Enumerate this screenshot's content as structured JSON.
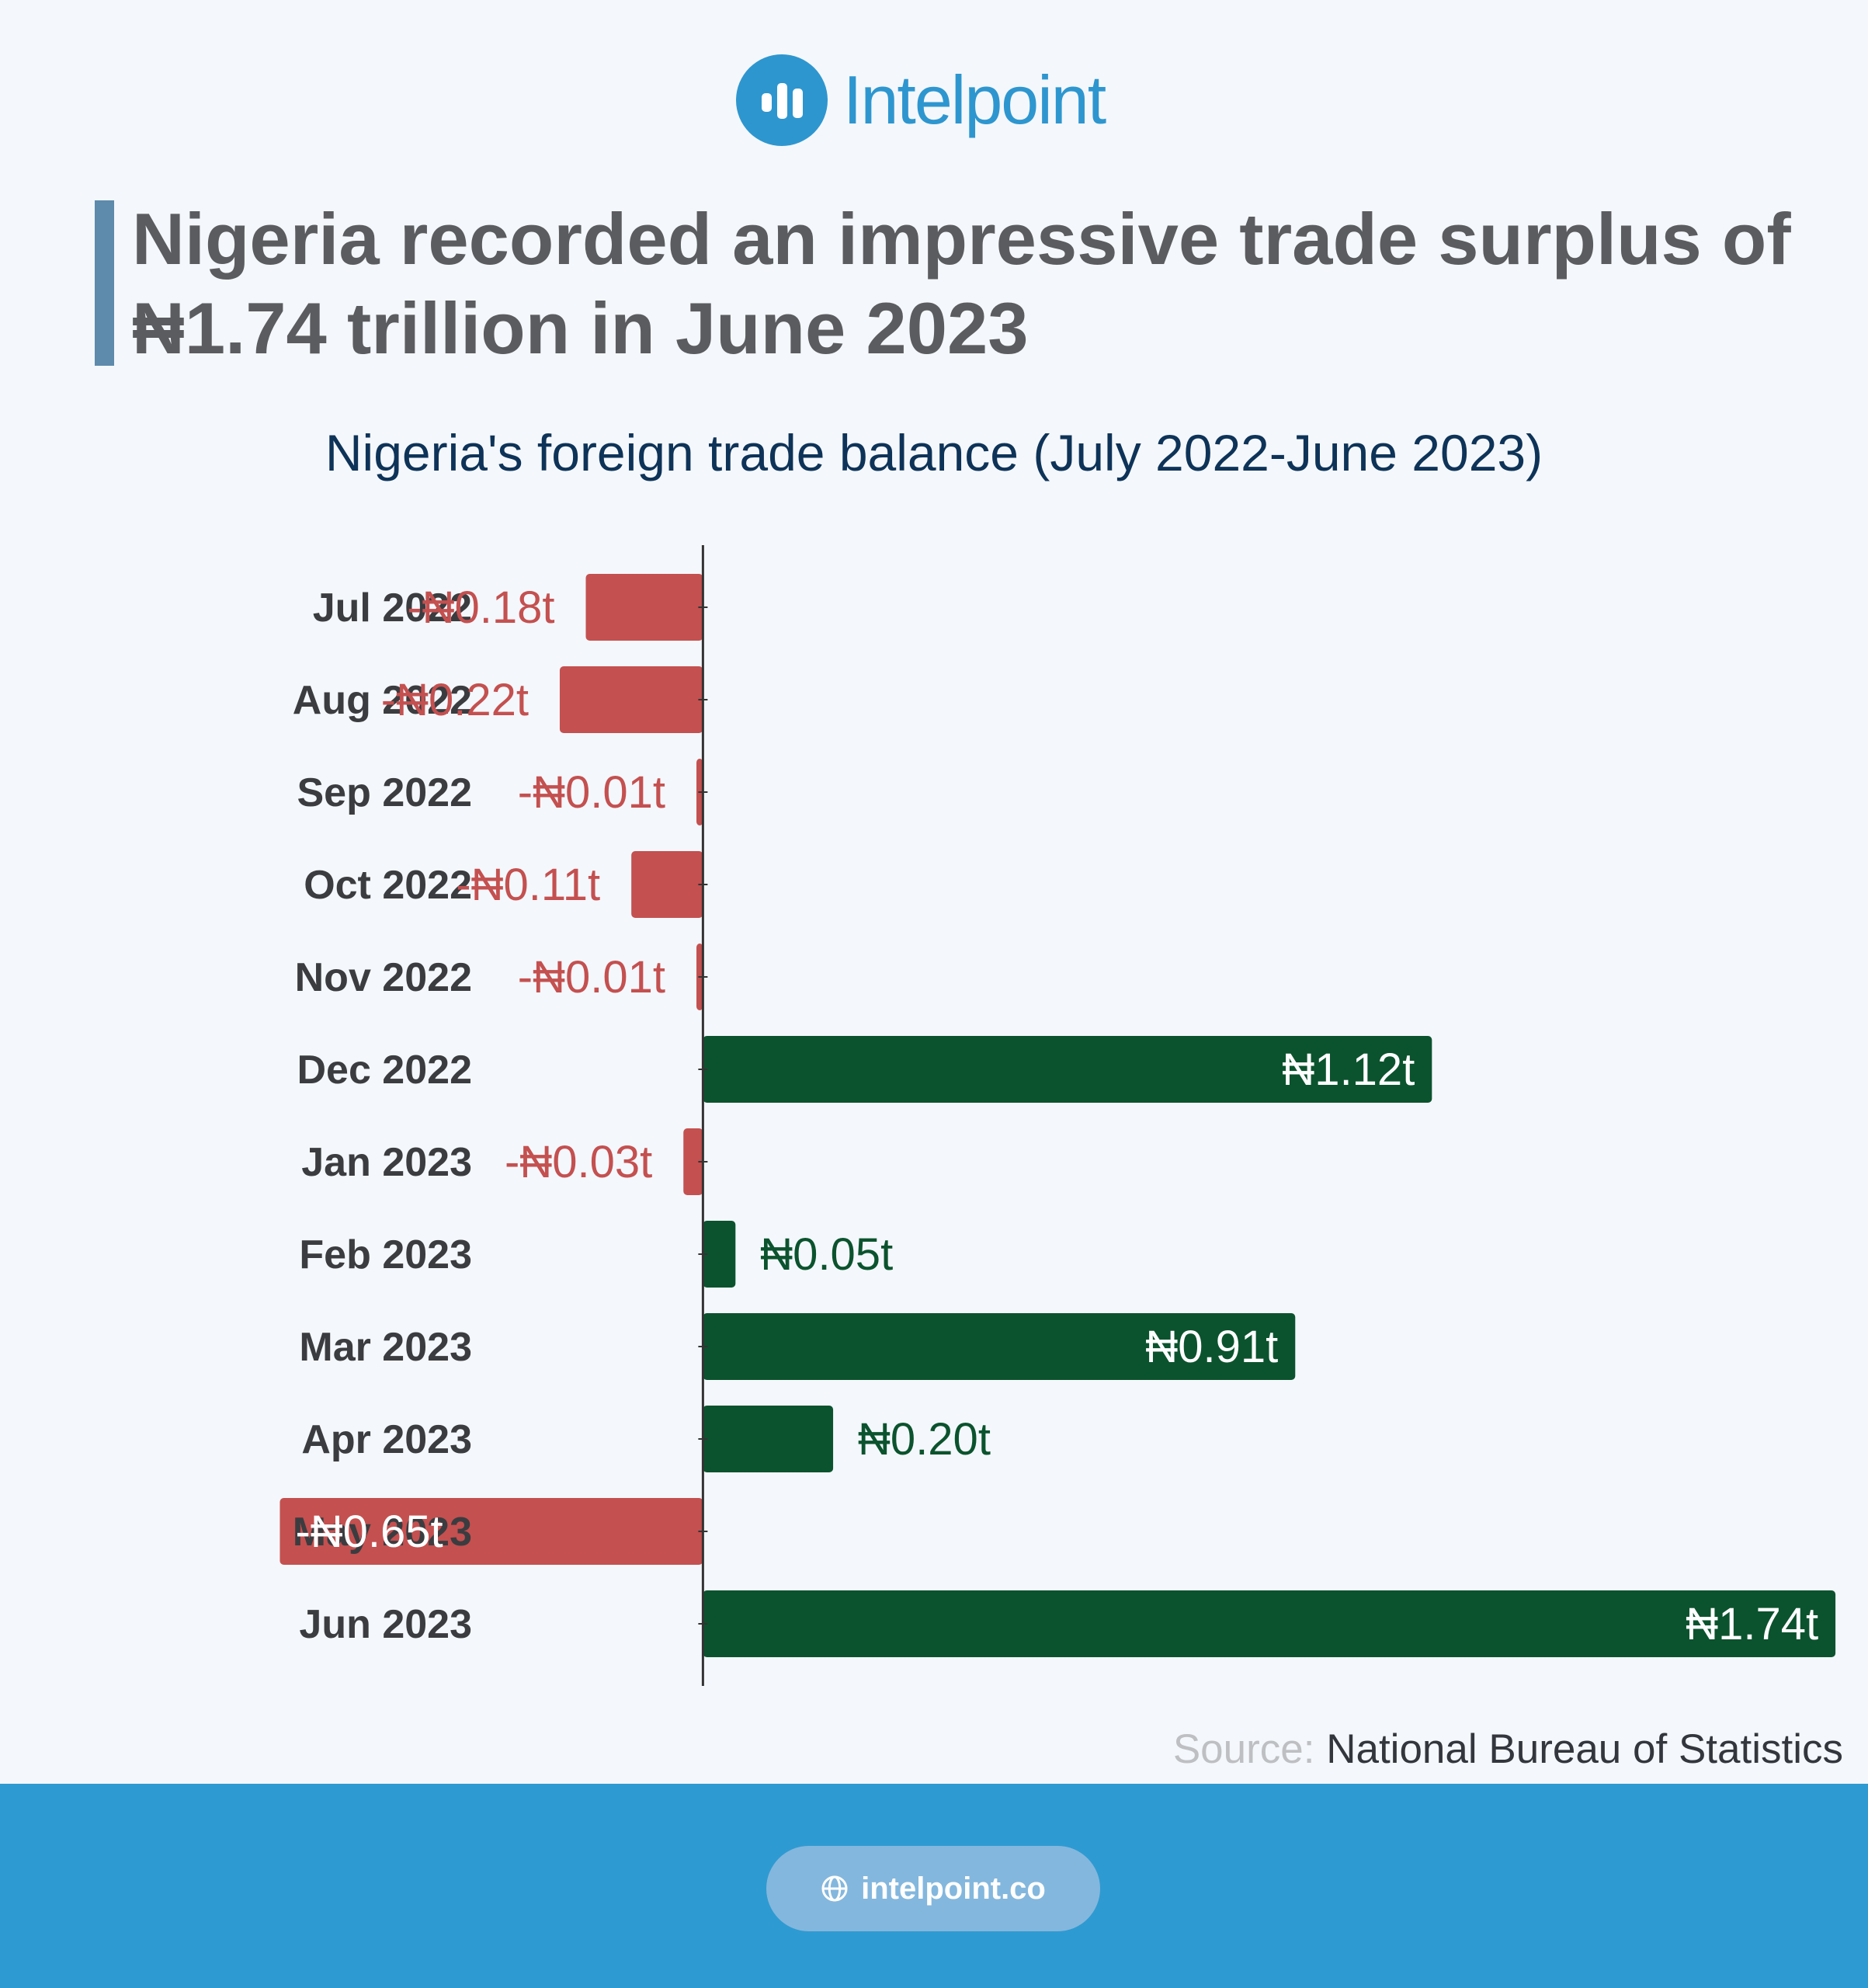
{
  "brand": {
    "name": "Intelpoint",
    "website": "intelpoint.co",
    "primary_color": "#2e96cf",
    "footer_color": "#2e9ad2"
  },
  "headline": "Nigeria recorded an impressive trade surplus of ₦1.74 trillion in June 2023",
  "source": {
    "label": "Source:",
    "text": "National Bureau of Statistics"
  },
  "colors": {
    "positive": "#0b532e",
    "negative": "#c45050",
    "axis": "#333333"
  },
  "chart_data": {
    "type": "bar",
    "orientation": "horizontal",
    "title": "Nigeria's foreign trade balance (July 2022-June 2023)",
    "unit": "₦ trillion",
    "categories": [
      "Jul 2022",
      "Aug 2022",
      "Sep 2022",
      "Oct 2022",
      "Nov 2022",
      "Dec 2022",
      "Jan 2023",
      "Feb 2023",
      "Mar 2023",
      "Apr 2023",
      "May 2023",
      "Jun 2023"
    ],
    "values": [
      -0.18,
      -0.22,
      -0.01,
      -0.11,
      -0.01,
      1.12,
      -0.03,
      0.05,
      0.91,
      0.2,
      -0.65,
      1.74
    ],
    "labels": [
      "-₦0.18t",
      "-₦0.22t",
      "-₦0.01t",
      "-₦0.11t",
      "-₦0.01t",
      "₦1.12t",
      "-₦0.03t",
      "₦0.05t",
      "₦0.91t",
      "₦0.20t",
      "-₦0.65t",
      "₦1.74t"
    ],
    "xlim": [
      -1.08,
      1.79
    ],
    "grid": false,
    "legend": "none"
  }
}
